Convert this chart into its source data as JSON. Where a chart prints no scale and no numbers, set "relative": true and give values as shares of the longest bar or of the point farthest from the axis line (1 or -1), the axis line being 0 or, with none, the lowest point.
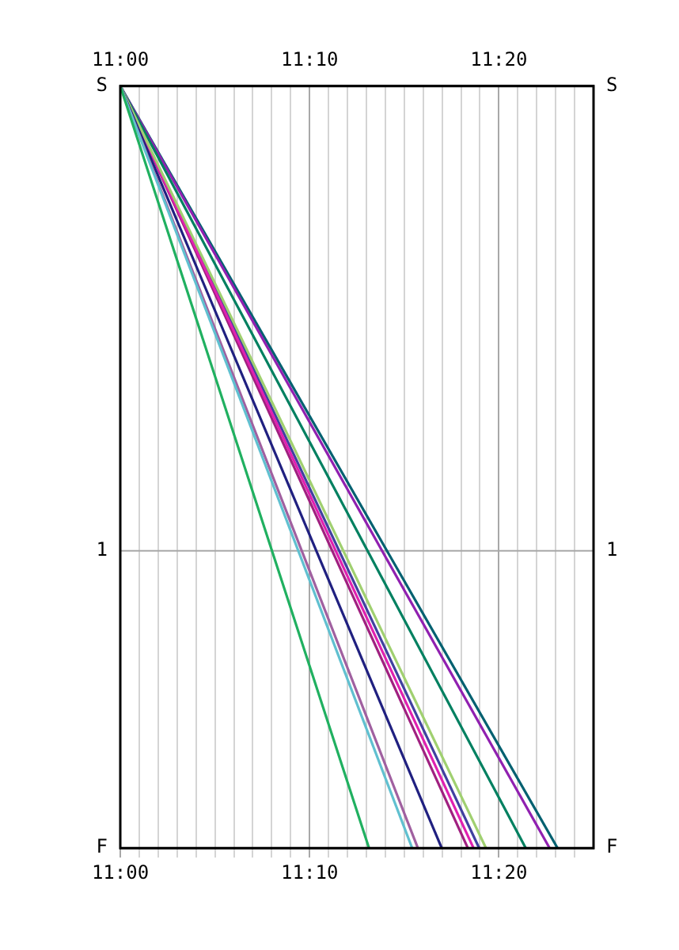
{
  "chart_data": {
    "type": "line",
    "xlim": [
      11,
      11.4167
    ],
    "x2lim": [
      11,
      11.4167
    ],
    "xticks": [
      {
        "value": 11,
        "label": "11:00"
      },
      {
        "value": 11.0167,
        "label": null
      },
      {
        "value": 11.0333,
        "label": null
      },
      {
        "value": 11.05,
        "label": null
      },
      {
        "value": 11.0667,
        "label": null
      },
      {
        "value": 11.0833,
        "label": null
      },
      {
        "value": 11.1,
        "label": null
      },
      {
        "value": 11.1167,
        "label": null
      },
      {
        "value": 11.1333,
        "label": null
      },
      {
        "value": 11.15,
        "label": null
      },
      {
        "value": 11.1667,
        "label": "11:10"
      },
      {
        "value": 11.1833,
        "label": null
      },
      {
        "value": 11.2,
        "label": null
      },
      {
        "value": 11.2167,
        "label": null
      },
      {
        "value": 11.2333,
        "label": null
      },
      {
        "value": 11.25,
        "label": null
      },
      {
        "value": 11.2667,
        "label": null
      },
      {
        "value": 11.2833,
        "label": null
      },
      {
        "value": 11.3,
        "label": null
      },
      {
        "value": 11.3167,
        "label": null
      },
      {
        "value": 11.3333,
        "label": "11:20"
      },
      {
        "value": 11.35,
        "label": null
      },
      {
        "value": 11.3667,
        "label": null
      },
      {
        "value": 11.3833,
        "label": null
      },
      {
        "value": 11.4,
        "label": null
      }
    ],
    "x2ticks": [
      {
        "value": 11,
        "label": "11:00"
      },
      {
        "value": 11.0167,
        "label": null
      },
      {
        "value": 11.0333,
        "label": null
      },
      {
        "value": 11.05,
        "label": null
      },
      {
        "value": 11.0667,
        "label": null
      },
      {
        "value": 11.0833,
        "label": null
      },
      {
        "value": 11.1,
        "label": null
      },
      {
        "value": 11.1167,
        "label": null
      },
      {
        "value": 11.1333,
        "label": null
      },
      {
        "value": 11.15,
        "label": null
      },
      {
        "value": 11.1667,
        "label": "11:10"
      },
      {
        "value": 11.1833,
        "label": null
      },
      {
        "value": 11.2,
        "label": null
      },
      {
        "value": 11.2167,
        "label": null
      },
      {
        "value": 11.2333,
        "label": null
      },
      {
        "value": 11.25,
        "label": null
      },
      {
        "value": 11.2667,
        "label": null
      },
      {
        "value": 11.2833,
        "label": null
      },
      {
        "value": 11.3,
        "label": null
      },
      {
        "value": 11.3167,
        "label": null
      },
      {
        "value": 11.3333,
        "label": "11:20"
      },
      {
        "value": 11.35,
        "label": null
      },
      {
        "value": 11.3667,
        "label": null
      },
      {
        "value": 11.3833,
        "label": null
      },
      {
        "value": 11.4,
        "label": null
      }
    ],
    "relative": true,
    "annotations": [
      "S",
      "1",
      "F"
    ],
    "ref_lines": [
      {
        "axis": "y",
        "value": 0.39,
        "color": "#a8a8a8"
      }
    ],
    "grid": true,
    "series": [
      {
        "color": "#20b060",
        "x": [
          11,
          11.219
        ],
        "values": [
          1,
          0
        ]
      },
      {
        "color": "#60c0d0",
        "x": [
          11,
          11.257
        ],
        "values": [
          1,
          0
        ]
      },
      {
        "color": "#a060a0",
        "x": [
          11,
          11.262
        ],
        "values": [
          1,
          0
        ]
      },
      {
        "color": "#202080",
        "x": [
          11,
          11.283
        ],
        "values": [
          1,
          0
        ]
      },
      {
        "color": "#a0d070",
        "x": [
          11,
          11.322
        ],
        "values": [
          1,
          0
        ]
      },
      {
        "color": "#e020b0",
        "x": [
          11,
          11.311
        ],
        "values": [
          1,
          0
        ]
      },
      {
        "color": "#4040a0",
        "x": [
          11,
          11.316
        ],
        "values": [
          1,
          0
        ]
      },
      {
        "color": "#a02080",
        "x": [
          11,
          11.306
        ],
        "values": [
          1,
          0
        ]
      },
      {
        "color": "#008060",
        "x": [
          11,
          11.357
        ],
        "values": [
          1,
          0
        ]
      },
      {
        "color": "#9020b0",
        "x": [
          11,
          11.378
        ],
        "values": [
          1,
          0
        ]
      },
      {
        "color": "#006070",
        "x": [
          11,
          11.385
        ],
        "values": [
          1,
          0
        ]
      }
    ]
  }
}
